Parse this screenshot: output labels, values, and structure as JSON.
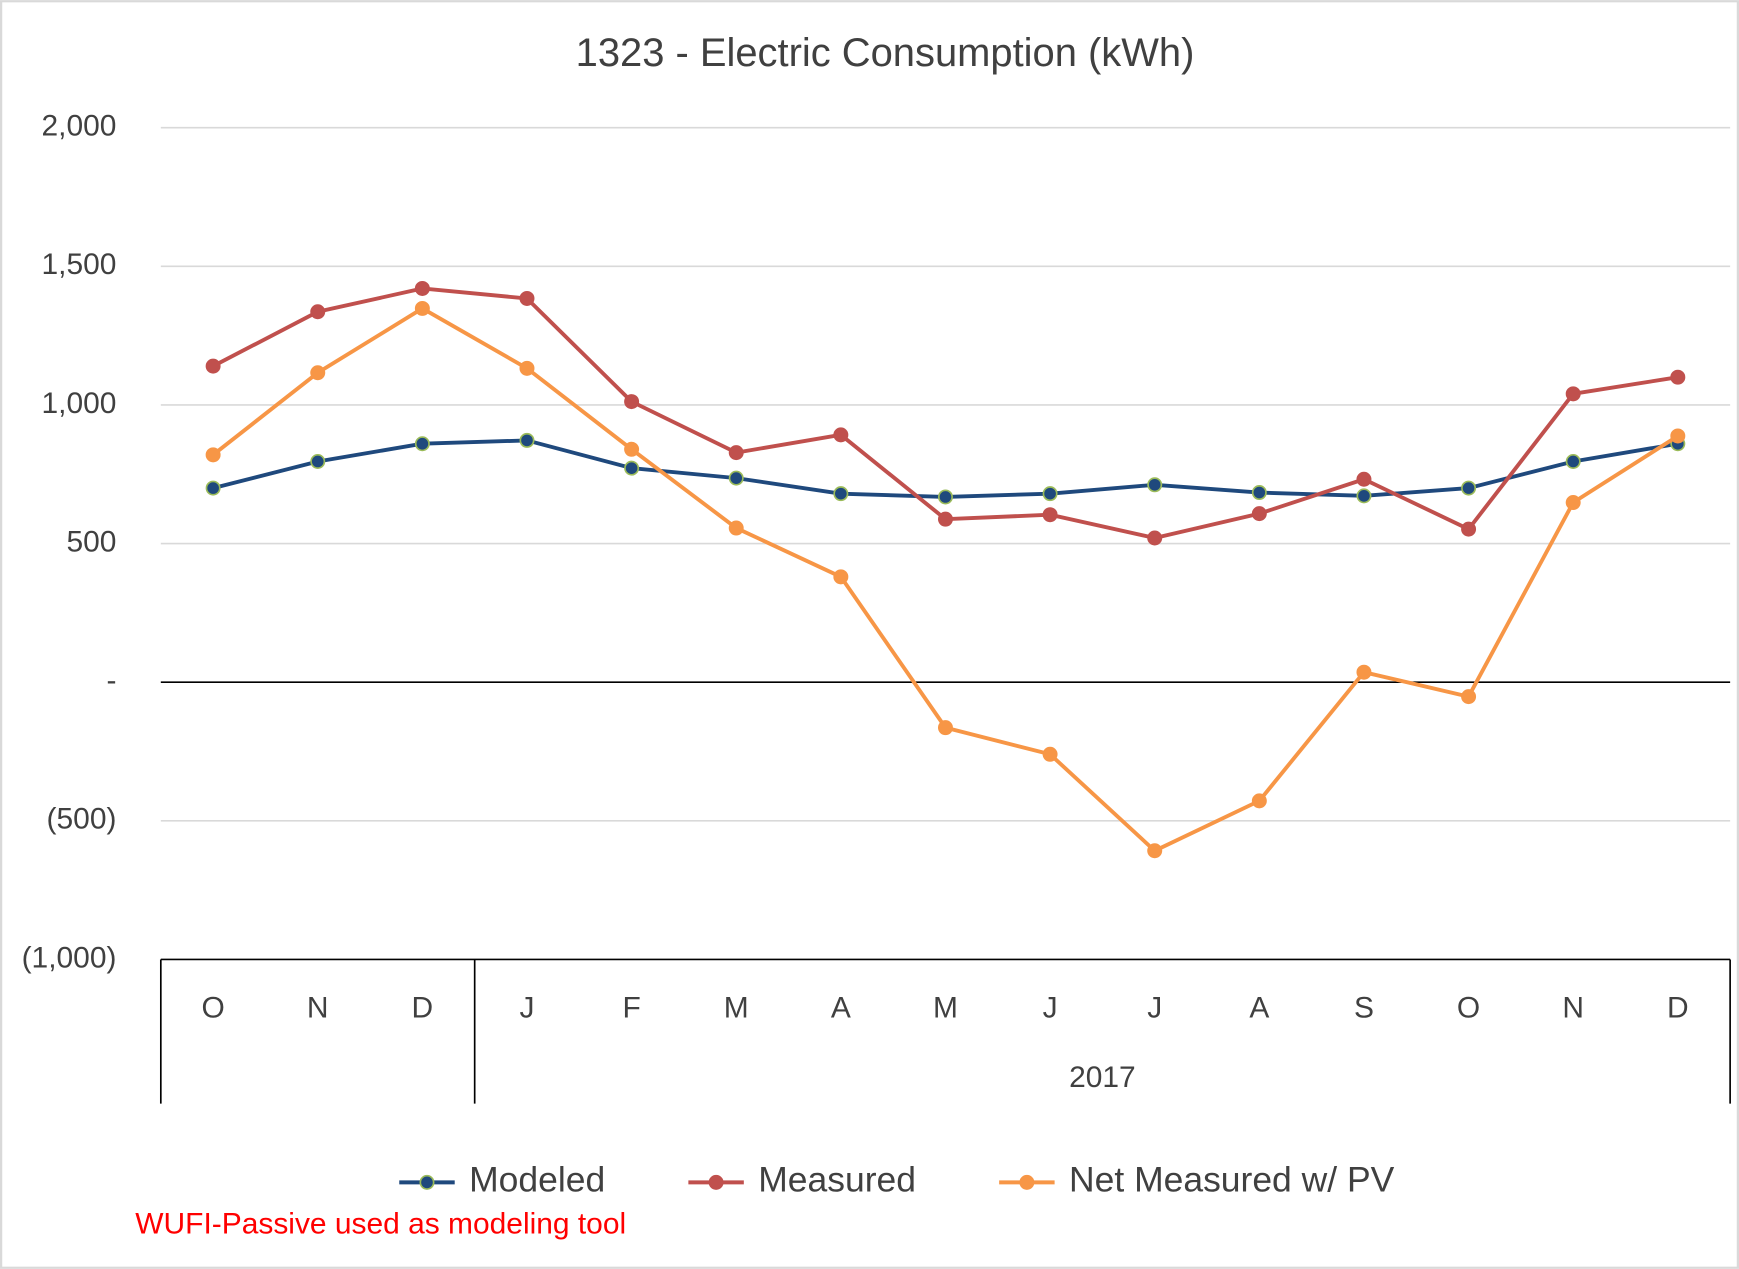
{
  "chart_data": {
    "type": "line",
    "title": "1323 - Electric Consumption (kWh)",
    "categories": [
      "O",
      "N",
      "D",
      "J",
      "F",
      "M",
      "A",
      "M",
      "J",
      "J",
      "A",
      "S",
      "O",
      "N",
      "D"
    ],
    "category_groups": [
      {
        "label": null,
        "span": 3
      },
      {
        "label": "2017",
        "span": 12
      }
    ],
    "series": [
      {
        "name": "Modeled",
        "color": "#1f497d",
        "marker_edge": "#9bbb59",
        "values": [
          700,
          796,
          860,
          872,
          772,
          736,
          680,
          668,
          680,
          712,
          684,
          672,
          700,
          796,
          860
        ]
      },
      {
        "name": "Measured",
        "color": "#c0504d",
        "values": [
          1140,
          1336,
          1420,
          1384,
          1012,
          828,
          892,
          588,
          604,
          520,
          608,
          732,
          552,
          1040,
          1100
        ]
      },
      {
        "name": "Net Measured w/ PV",
        "color": "#f79646",
        "values": [
          820,
          1116,
          1348,
          1132,
          840,
          556,
          380,
          -164,
          -260,
          -608,
          -428,
          36,
          -52,
          648,
          888
        ]
      }
    ],
    "ylim": [
      -1000,
      2000
    ],
    "yticks": [
      {
        "value": -1000,
        "label": "(1,000)"
      },
      {
        "value": -500,
        "label": "(500)"
      },
      {
        "value": 0,
        "label": "-"
      },
      500,
      {
        "value": 1000,
        "label": "1,000"
      },
      {
        "value": 1500,
        "label": "1,500"
      },
      {
        "value": 2000,
        "label": "2,000"
      }
    ],
    "grid": true,
    "legend": "bottom",
    "annotation": "WUFI-Passive used as modeling tool",
    "annotation_color": "#ff0000"
  }
}
